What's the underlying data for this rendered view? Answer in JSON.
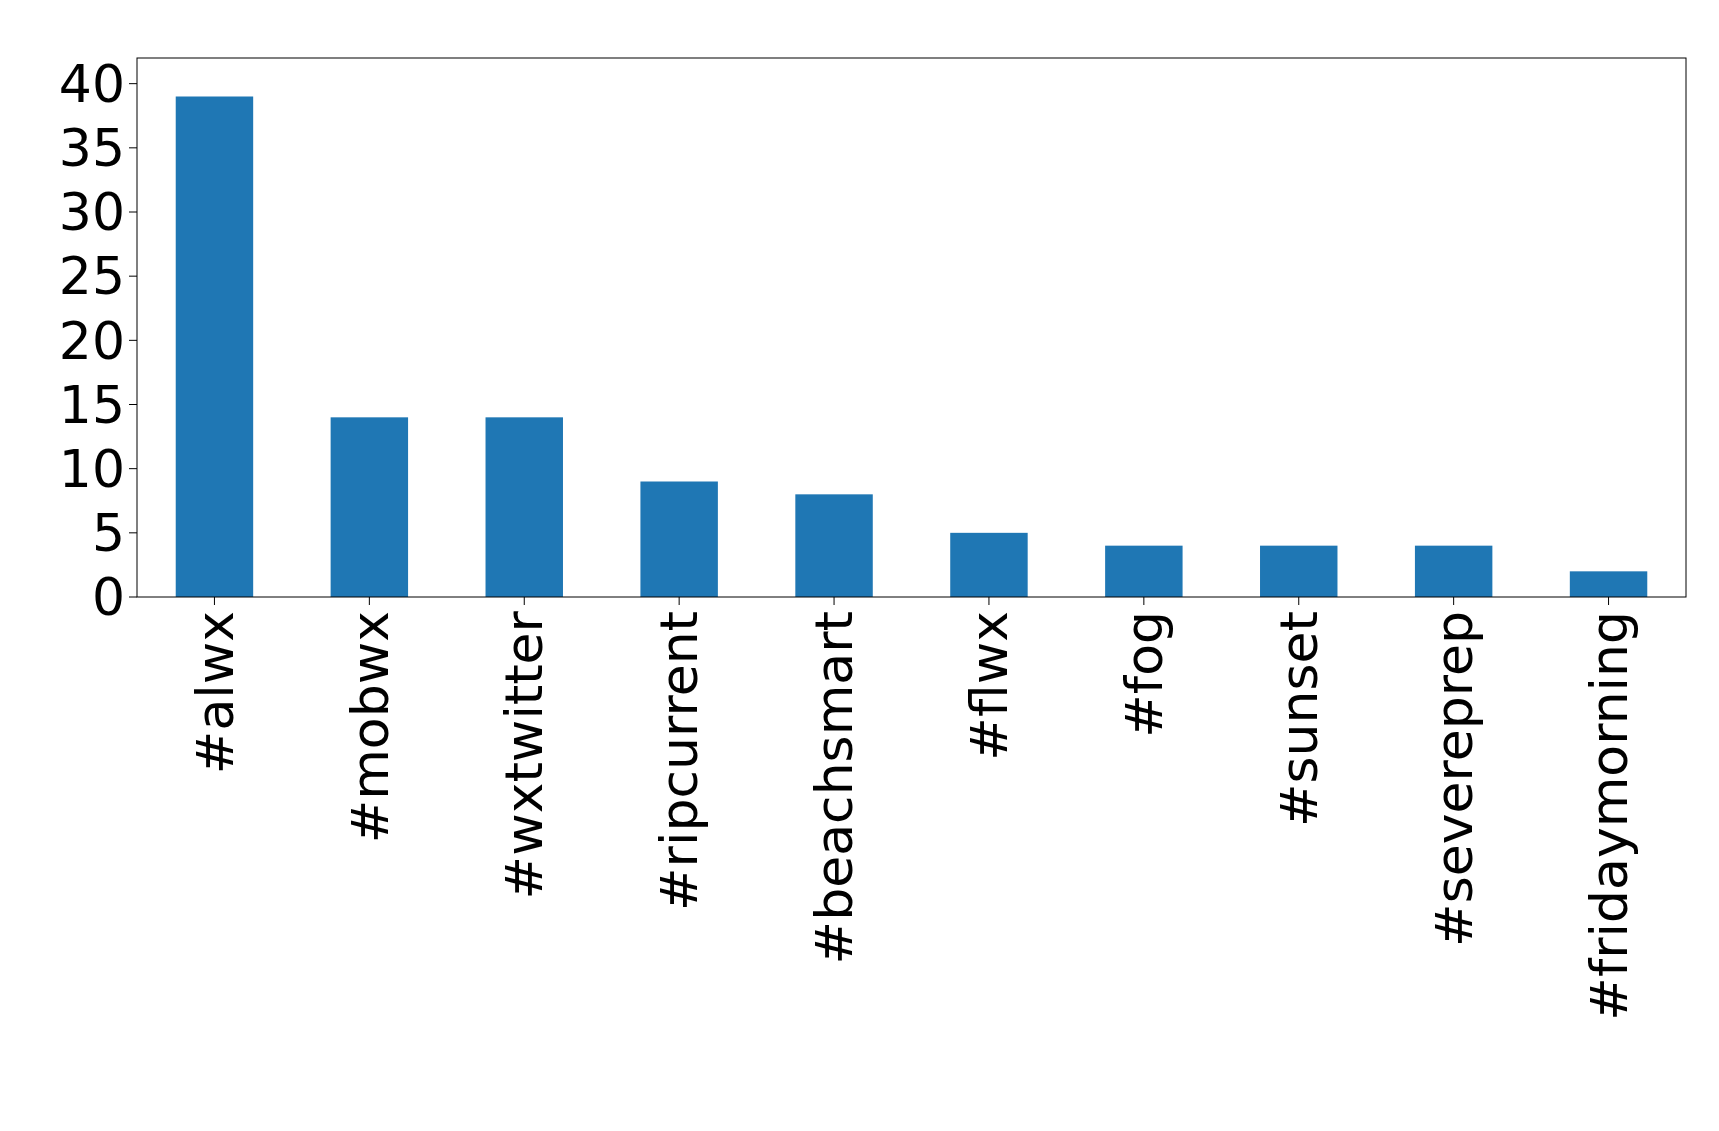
{
  "chart_data": {
    "type": "bar",
    "categories": [
      "#alwx",
      "#mobwx",
      "#wxtwitter",
      "#ripcurrent",
      "#beachsmart",
      "#flwx",
      "#fog",
      "#sunset",
      "#severeprep",
      "#fridaymorning"
    ],
    "values": [
      39,
      14,
      14,
      9,
      8,
      5,
      4,
      4,
      4,
      2
    ],
    "color": "#1f77b4",
    "ylim": [
      0,
      42
    ],
    "yticks": [
      0,
      5,
      10,
      15,
      20,
      25,
      30,
      35,
      40
    ],
    "grid": false
  }
}
